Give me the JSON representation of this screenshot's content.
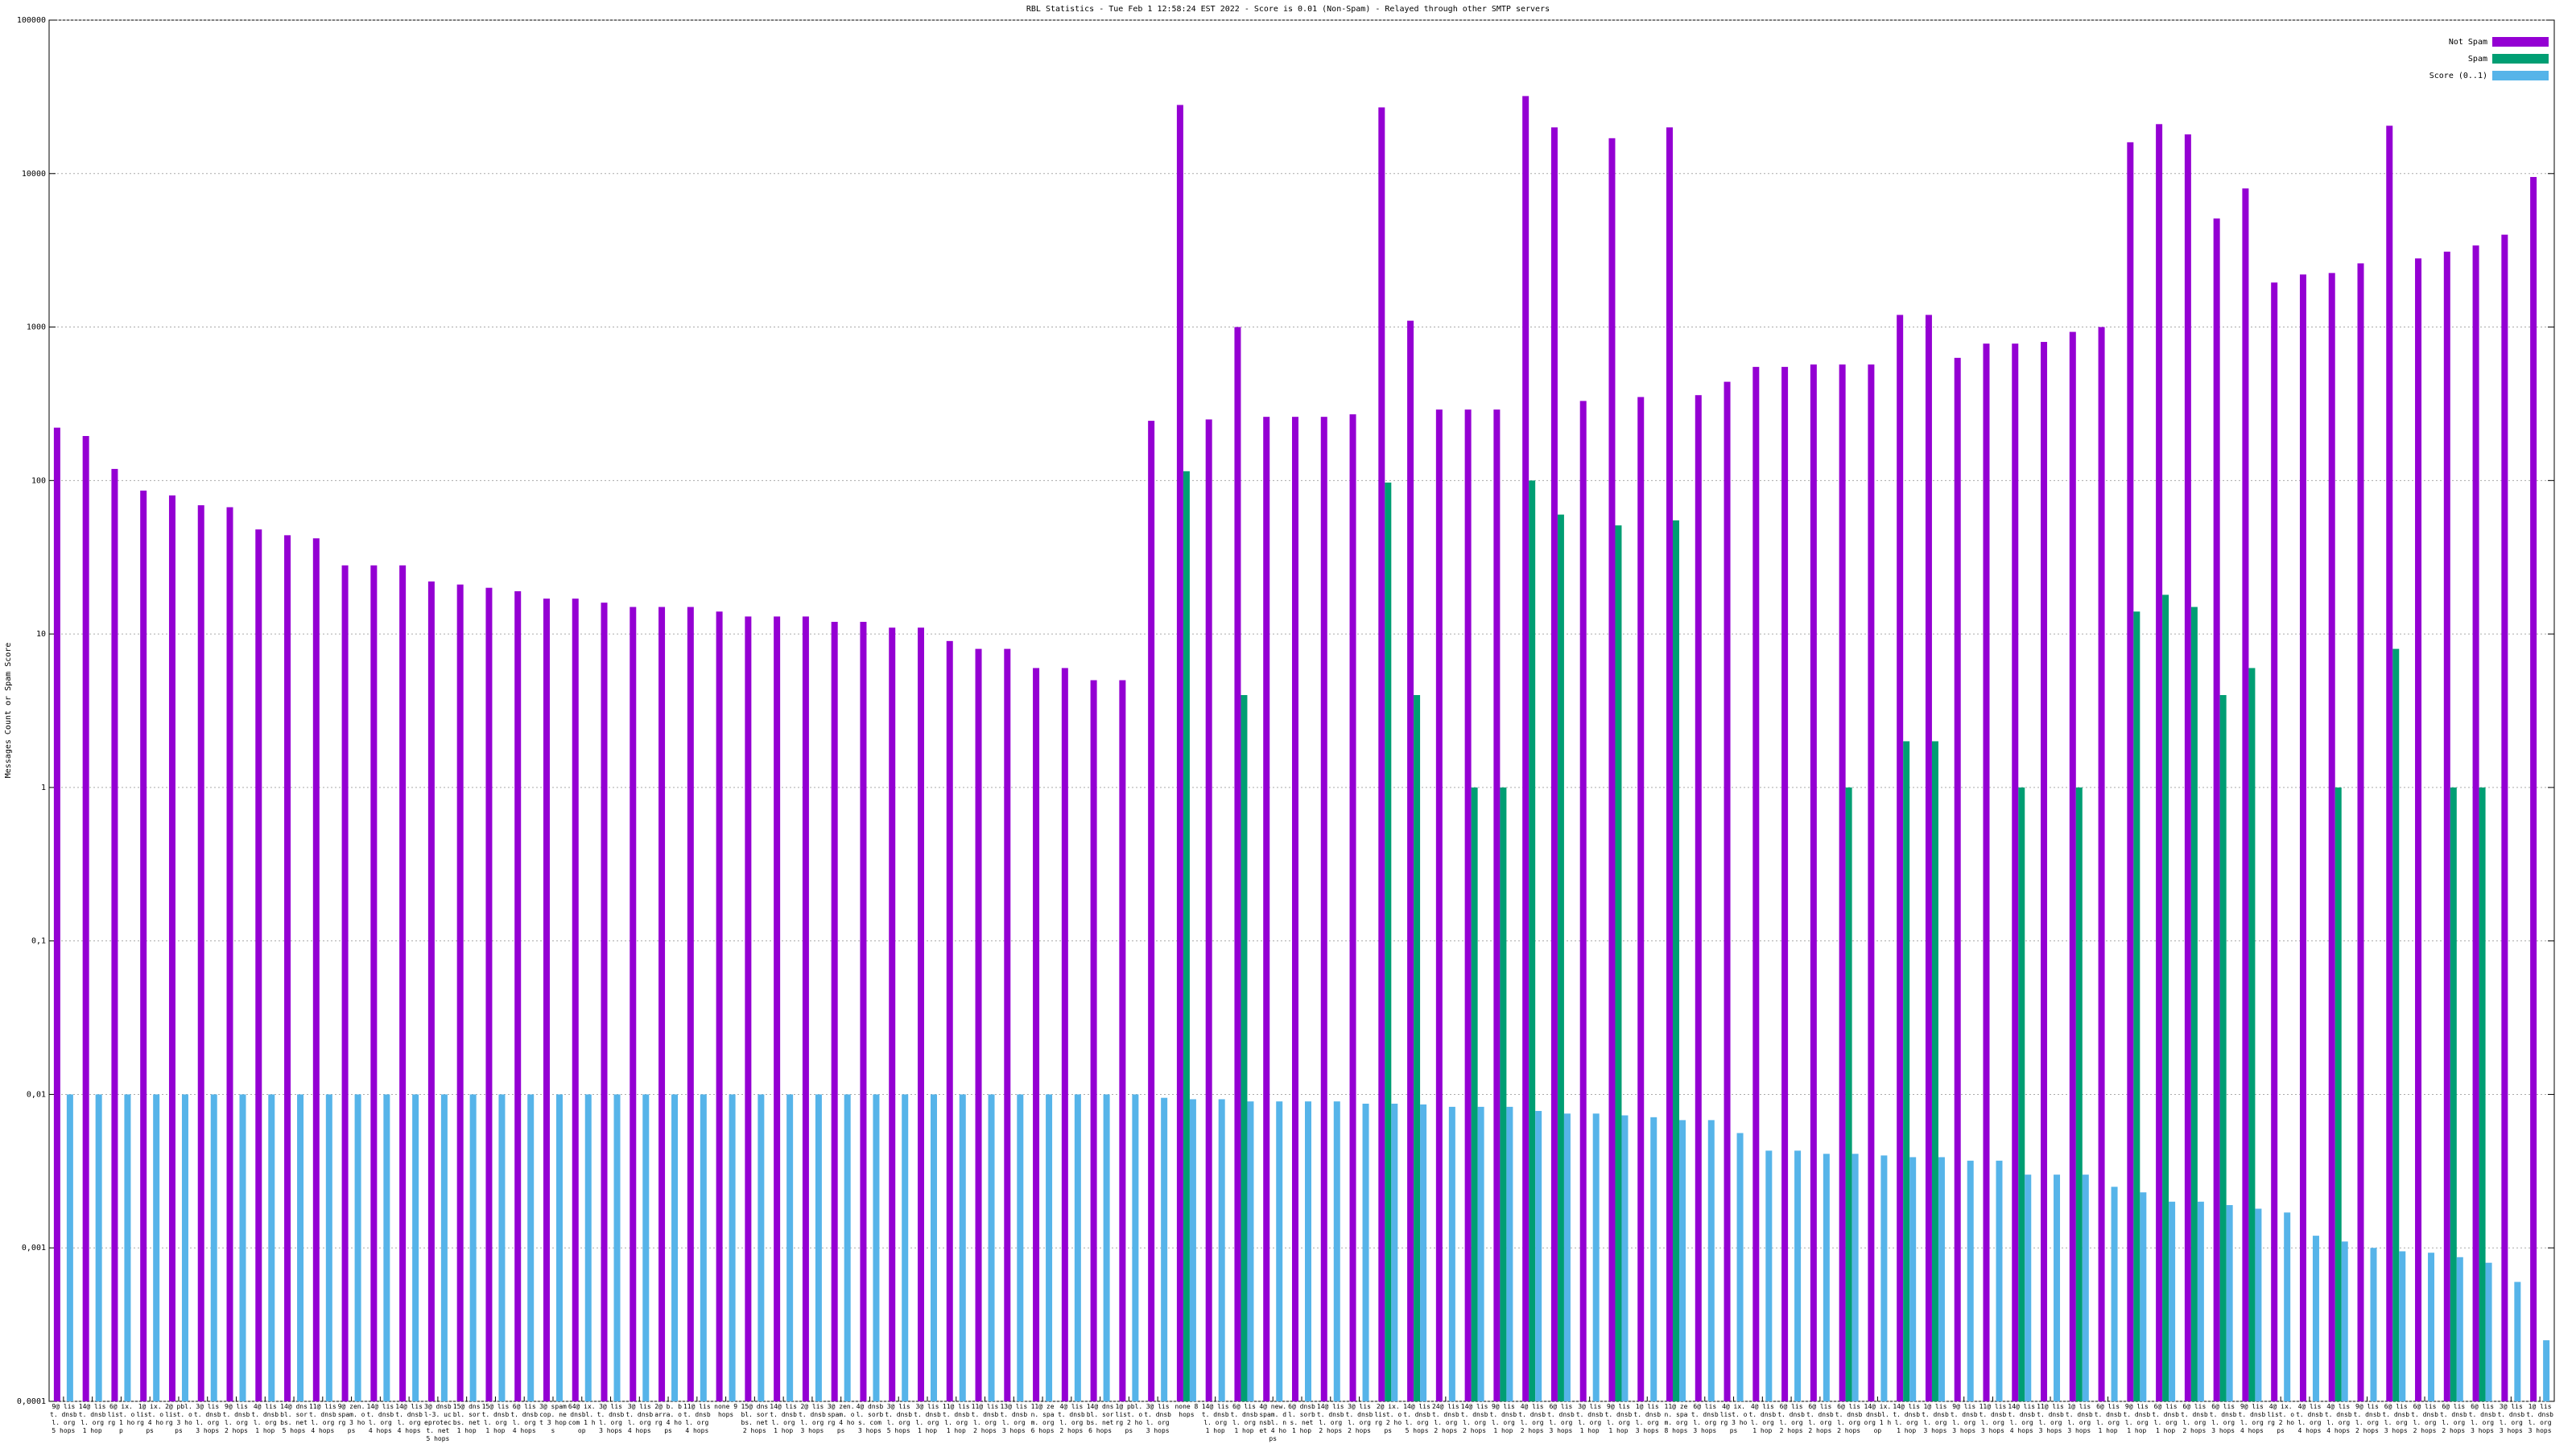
{
  "chart_data": {
    "type": "bar",
    "title": "RBL Statistics - Tue Feb  1 12:58:24 EST 2022 - Score is 0.01 (Non-Spam) - Relayed through other SMTP servers",
    "y_label": "Messages Count or Spam Score",
    "log_scale": true,
    "grid": true,
    "legend": "top-right",
    "ylim": [
      0.0001,
      100000
    ],
    "yticks": [
      {
        "value": 0.0001,
        "label": "0,0001"
      },
      {
        "value": 0.001,
        "label": "0,001"
      },
      {
        "value": 0.01,
        "label": "0,01"
      },
      {
        "value": 0.1,
        "label": "0,1"
      },
      1,
      10,
      100,
      1000,
      10000,
      100000
    ],
    "categories": [
      "9@ list. dnsbl. org 5 hops",
      "14@ list. dnsbl. org 1 hop",
      "6@ ix. list. org 1 hop",
      "1@ ix. list. org 4 hops",
      "2@ pbl. list. org 3 hops",
      "3@ list. dnsbl. org 3 hops",
      "9@ list. dnsbl. org 2 hops",
      "4@ list. dnsbl. org 1 hop",
      "14@ dnsbl. sorbs. net 5 hops",
      "11@ list. dnsbl. org 4 hops",
      "9@ zen. spam. org 3 hops",
      "14@ list. dnsbl. org 4 hops",
      "14@ list. dnsbl. org 4 hops",
      "3@ dnsbl-3. uceprotect. net 5 hops",
      "15@ dnsbl. sorbs. net 1 hop",
      "15@ list. dnsbl. org 1 hop",
      "6@ list. dnsbl. org 4 hops",
      "3@ spamcop. net 3 hops",
      "64@ ix. dnsbl. com 1 hop",
      "3@ list. dnsbl. org 3 hops",
      "3@ list. dnsbl. org 4 hops",
      "2@ b. barra. org 4 hops",
      "11@ list. dnsbl. org 4 hops",
      "none 9 hops",
      "15@ dnsbl. sorbs. net 2 hops",
      "14@ list. dnsbl. org 1 hop",
      "2@ list. dnsbl. org 3 hops",
      "3@ zen. spam. org 4 hops",
      "4@ dnsbl. sorbs. com 3 hops",
      "3@ list. dnsbl. org 5 hops",
      "3@ list. dnsbl. org 1 hop",
      "11@ list. dnsbl. org 1 hop",
      "11@ list. dnsbl. org 2 hops",
      "13@ list. dnsbl. org 3 hops",
      "11@ zen. spam. org 6 hops",
      "4@ list. dnsbl. org 2 hops",
      "14@ dnsbl. sorbs. net 6 hops",
      "1@ pbl. list. org 2 hops",
      "3@ list. dnsbl. org 3 hops",
      "none 8 hops",
      "14@ list. dnsbl. org 1 hop",
      "6@ list. dnsbl. org 1 hop",
      "4@ new. spam. dnsbl. net 4 hops",
      "6@ dnsbl. sorbs. net 1 hop",
      "14@ list. dnsbl. org 2 hops",
      "3@ list. dnsbl. org 2 hops",
      "2@ ix. list. org 2 hops",
      "14@ list. dnsbl. org 5 hops",
      "24@ list. dnsbl. org 2 hops",
      "14@ list. dnsbl. org 2 hops",
      "9@ list. dnsbl. org 1 hop",
      "4@ list. dnsbl. org 2 hops",
      "6@ list. dnsbl. org 3 hops",
      "3@ list. dnsbl. org 1 hop",
      "9@ list. dnsbl. org 1 hop",
      "1@ list. dnsbl. org 3 hops",
      "11@ zen. spam. org 8 hops",
      "6@ list. dnsbl. org 3 hops",
      "4@ ix. list. org 3 hops",
      "4@ list. dnsbl. org 1 hop",
      "6@ list. dnsbl. org 2 hops",
      "6@ list. dnsbl. org 2 hops",
      "6@ list. dnsbl. org 2 hops",
      "14@ ix. dnsbl. org 1 hop",
      "14@ list. dnsbl. org 1 hop",
      "1@ list. dnsbl. org 3 hops",
      "9@ list. dnsbl. org 3 hops",
      "11@ list. dnsbl. org 3 hops",
      "14@ list. dnsbl. org 4 hops",
      "11@ list. dnsbl. org 3 hops",
      "1@ list. dnsbl. org 3 hops",
      "6@ list. dnsbl. org 1 hop",
      "9@ list. dnsbl. org 1 hop",
      "6@ list. dnsbl. org 1 hop",
      "6@ list. dnsbl. org 2 hops",
      "6@ list. dnsbl. org 3 hops",
      "9@ list. dnsbl. org 4 hops",
      "4@ ix. list. org 2 hops",
      "4@ list. dnsbl. org 4 hops",
      "4@ list. dnsbl. org 4 hops",
      "9@ list. dnsbl. org 2 hops",
      "6@ list. dnsbl. org 3 hops",
      "6@ list. dnsbl. org 2 hops",
      "6@ list. dnsbl. org 2 hops",
      "6@ list. dnsbl. org 3 hops",
      "3@ list. dnsbl. org 3 hops",
      "1@ list. dnsbl. org 3 hops"
    ],
    "series": [
      {
        "name": "Not Spam",
        "color": "#9400d3",
        "values": [
          221,
          195,
          119,
          86,
          80,
          69,
          67,
          48,
          44,
          42,
          28,
          28,
          28,
          22,
          21,
          20,
          19,
          17,
          17,
          16,
          15,
          15,
          15,
          14,
          13,
          13,
          13,
          12,
          12,
          11,
          11,
          9,
          8,
          8,
          6,
          6,
          5,
          5,
          245,
          28000,
          250,
          1000,
          260,
          260,
          260,
          270,
          27000,
          1100,
          290,
          290,
          290,
          32000,
          20000,
          330,
          17000,
          350,
          20000,
          360,
          440,
          550,
          550,
          570,
          570,
          570,
          1200,
          1200,
          630,
          780,
          780,
          800,
          930,
          1000,
          16000,
          21000,
          18000,
          5100,
          8000,
          1950,
          2200,
          2250,
          2600,
          20500,
          2800,
          3100,
          3400,
          4000,
          9500
        ]
      },
      {
        "name": "Spam",
        "color": "#009e73",
        "values": [
          null,
          null,
          null,
          null,
          null,
          null,
          null,
          null,
          null,
          null,
          null,
          null,
          null,
          null,
          null,
          null,
          null,
          null,
          null,
          null,
          null,
          null,
          null,
          null,
          null,
          null,
          null,
          null,
          null,
          null,
          null,
          null,
          null,
          null,
          null,
          null,
          null,
          null,
          null,
          115,
          null,
          4,
          null,
          null,
          null,
          null,
          97,
          4,
          null,
          1,
          1,
          100,
          60,
          null,
          51,
          null,
          55,
          null,
          null,
          null,
          null,
          null,
          1,
          null,
          2,
          2,
          null,
          null,
          1,
          null,
          1,
          null,
          14,
          18,
          15,
          4,
          6,
          null,
          null,
          1,
          null,
          8,
          null,
          1,
          1,
          null,
          null
        ]
      },
      {
        "name": "Score (0..1)",
        "color": "#56b4e9",
        "values": [
          0.01,
          0.01,
          0.01,
          0.01,
          0.01,
          0.01,
          0.01,
          0.01,
          0.01,
          0.01,
          0.01,
          0.01,
          0.01,
          0.01,
          0.01,
          0.01,
          0.01,
          0.01,
          0.01,
          0.01,
          0.01,
          0.01,
          0.01,
          0.01,
          0.01,
          0.01,
          0.01,
          0.01,
          0.01,
          0.01,
          0.01,
          0.01,
          0.01,
          0.01,
          0.01,
          0.01,
          0.01,
          0.01,
          0.0095,
          0.0093,
          0.0093,
          0.009,
          0.009,
          0.009,
          0.009,
          0.0087,
          0.0087,
          0.0086,
          0.0083,
          0.0083,
          0.0083,
          0.0078,
          0.0075,
          0.0075,
          0.0073,
          0.0071,
          0.0068,
          0.0068,
          0.0056,
          0.0043,
          0.0043,
          0.0041,
          0.0041,
          0.004,
          0.0039,
          0.0039,
          0.0037,
          0.0037,
          0.003,
          0.003,
          0.003,
          0.0025,
          0.0023,
          0.002,
          0.002,
          0.0019,
          0.0018,
          0.0017,
          0.0012,
          0.0011,
          0.001,
          0.00095,
          0.00093,
          0.00087,
          0.0008,
          0.0006,
          0.00025
        ]
      }
    ]
  }
}
